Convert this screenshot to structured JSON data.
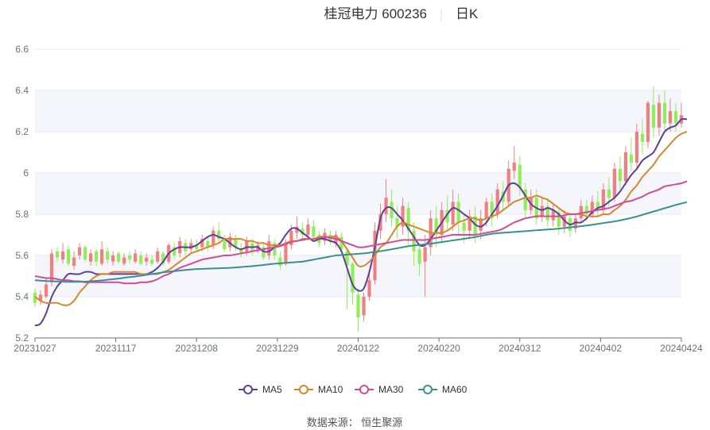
{
  "title": {
    "name": "桂冠电力 600236",
    "period": "日K"
  },
  "source": "数据来源： 恒生聚源",
  "chart_data": {
    "type": "candlestick",
    "ylim": [
      5.2,
      6.6
    ],
    "yticks": [
      "5.2",
      "5.4",
      "5.6",
      "5.8",
      "6",
      "6.2",
      "6.4",
      "6.6"
    ],
    "xticks": [
      "20231027",
      "20231117",
      "20231208",
      "20231229",
      "20240122",
      "20240220",
      "20240312",
      "20240402",
      "20240424"
    ],
    "up_color": "#f08080",
    "down_color": "#91ee58",
    "grid": true,
    "legend_position": "bottom",
    "ohlc": [
      [
        5.42,
        5.37,
        5.44,
        5.35
      ],
      [
        5.38,
        5.41,
        5.43,
        5.36
      ],
      [
        5.4,
        5.46,
        5.49,
        5.39
      ],
      [
        5.47,
        5.61,
        5.63,
        5.45
      ],
      [
        5.62,
        5.59,
        5.64,
        5.57
      ],
      [
        5.58,
        5.62,
        5.66,
        5.56
      ],
      [
        5.63,
        5.56,
        5.65,
        5.55
      ],
      [
        5.55,
        5.59,
        5.62,
        5.53
      ],
      [
        5.6,
        5.64,
        5.66,
        5.58
      ],
      [
        5.64,
        5.58,
        5.65,
        5.57
      ],
      [
        5.57,
        5.61,
        5.63,
        5.55
      ],
      [
        5.62,
        5.57,
        5.63,
        5.55
      ],
      [
        5.56,
        5.63,
        5.67,
        5.55
      ],
      [
        5.62,
        5.58,
        5.64,
        5.56
      ],
      [
        5.57,
        5.6,
        5.62,
        5.55
      ],
      [
        5.61,
        5.57,
        5.62,
        5.56
      ],
      [
        5.56,
        5.59,
        5.61,
        5.55
      ],
      [
        5.6,
        5.58,
        5.62,
        5.56
      ],
      [
        5.57,
        5.61,
        5.63,
        5.56
      ],
      [
        5.6,
        5.56,
        5.62,
        5.55
      ],
      [
        5.57,
        5.59,
        5.61,
        5.55
      ],
      [
        5.58,
        5.56,
        5.6,
        5.55
      ],
      [
        5.57,
        5.62,
        5.64,
        5.56
      ],
      [
        5.61,
        5.56,
        5.62,
        5.55
      ],
      [
        5.57,
        5.65,
        5.66,
        5.56
      ],
      [
        5.64,
        5.6,
        5.66,
        5.58
      ],
      [
        5.61,
        5.67,
        5.69,
        5.59
      ],
      [
        5.66,
        5.62,
        5.68,
        5.6
      ],
      [
        5.63,
        5.66,
        5.68,
        5.61
      ],
      [
        5.65,
        5.63,
        5.68,
        5.62
      ],
      [
        5.64,
        5.68,
        5.7,
        5.62
      ],
      [
        5.67,
        5.64,
        5.69,
        5.62
      ],
      [
        5.65,
        5.72,
        5.74,
        5.63
      ],
      [
        5.72,
        5.68,
        5.76,
        5.66
      ],
      [
        5.67,
        5.63,
        5.7,
        5.62
      ],
      [
        5.64,
        5.69,
        5.71,
        5.62
      ],
      [
        5.68,
        5.64,
        5.7,
        5.62
      ],
      [
        5.63,
        5.61,
        5.66,
        5.59
      ],
      [
        5.62,
        5.67,
        5.69,
        5.6
      ],
      [
        5.66,
        5.62,
        5.68,
        5.6
      ],
      [
        5.63,
        5.65,
        5.67,
        5.61
      ],
      [
        5.64,
        5.59,
        5.66,
        5.58
      ],
      [
        5.6,
        5.67,
        5.7,
        5.58
      ],
      [
        5.66,
        5.6,
        5.68,
        5.58
      ],
      [
        5.59,
        5.55,
        5.62,
        5.53
      ],
      [
        5.56,
        5.66,
        5.68,
        5.55
      ],
      [
        5.65,
        5.72,
        5.75,
        5.63
      ],
      [
        5.71,
        5.74,
        5.79,
        5.68
      ],
      [
        5.73,
        5.7,
        5.76,
        5.68
      ],
      [
        5.7,
        5.75,
        5.78,
        5.68
      ],
      [
        5.74,
        5.69,
        5.77,
        5.67
      ],
      [
        5.7,
        5.66,
        5.72,
        5.64
      ],
      [
        5.67,
        5.71,
        5.73,
        5.65
      ],
      [
        5.7,
        5.67,
        5.72,
        5.65
      ],
      [
        5.66,
        5.7,
        5.72,
        5.64
      ],
      [
        5.69,
        5.63,
        5.71,
        5.61
      ],
      [
        5.62,
        5.55,
        5.64,
        5.34
      ],
      [
        5.56,
        5.42,
        5.57,
        5.36
      ],
      [
        5.41,
        5.3,
        5.44,
        5.23
      ],
      [
        5.31,
        5.4,
        5.42,
        5.28
      ],
      [
        5.4,
        5.48,
        5.52,
        5.38
      ],
      [
        5.48,
        5.72,
        5.76,
        5.46
      ],
      [
        5.72,
        5.8,
        5.85,
        5.68
      ],
      [
        5.8,
        5.88,
        5.97,
        5.76
      ],
      [
        5.86,
        5.78,
        5.92,
        5.74
      ],
      [
        5.78,
        5.74,
        5.84,
        5.68
      ],
      [
        5.74,
        5.84,
        5.88,
        5.7
      ],
      [
        5.83,
        5.72,
        5.86,
        5.64
      ],
      [
        5.72,
        5.62,
        5.76,
        5.55
      ],
      [
        5.63,
        5.56,
        5.66,
        5.5
      ],
      [
        5.57,
        5.64,
        5.7,
        5.4
      ],
      [
        5.64,
        5.78,
        5.82,
        5.6
      ],
      [
        5.78,
        5.7,
        5.84,
        5.64
      ],
      [
        5.7,
        5.82,
        5.86,
        5.66
      ],
      [
        5.82,
        5.76,
        5.89,
        5.72
      ],
      [
        5.75,
        5.86,
        5.92,
        5.72
      ],
      [
        5.86,
        5.76,
        5.9,
        5.7
      ],
      [
        5.76,
        5.72,
        5.8,
        5.66
      ],
      [
        5.72,
        5.79,
        5.82,
        5.68
      ],
      [
        5.79,
        5.7,
        5.84,
        5.66
      ],
      [
        5.72,
        5.78,
        5.82,
        5.68
      ],
      [
        5.78,
        5.86,
        5.88,
        5.74
      ],
      [
        5.86,
        5.78,
        5.9,
        5.74
      ],
      [
        5.8,
        5.92,
        5.95,
        5.78
      ],
      [
        5.91,
        5.86,
        5.96,
        5.82
      ],
      [
        5.86,
        6.02,
        6.06,
        5.84
      ],
      [
        6.01,
        6.05,
        6.13,
        5.97
      ],
      [
        6.04,
        5.93,
        6.08,
        5.89
      ],
      [
        5.92,
        5.82,
        5.95,
        5.78
      ],
      [
        5.82,
        5.88,
        5.92,
        5.8
      ],
      [
        5.88,
        5.78,
        5.92,
        5.75
      ],
      [
        5.79,
        5.84,
        5.88,
        5.76
      ],
      [
        5.84,
        5.77,
        5.88,
        5.74
      ],
      [
        5.77,
        5.82,
        5.85,
        5.74
      ],
      [
        5.81,
        5.74,
        5.83,
        5.7
      ],
      [
        5.74,
        5.79,
        5.82,
        5.71
      ],
      [
        5.78,
        5.72,
        5.81,
        5.69
      ],
      [
        5.73,
        5.78,
        5.8,
        5.71
      ],
      [
        5.78,
        5.84,
        5.87,
        5.76
      ],
      [
        5.84,
        5.8,
        5.87,
        5.77
      ],
      [
        5.8,
        5.86,
        5.89,
        5.78
      ],
      [
        5.86,
        5.82,
        5.91,
        5.79
      ],
      [
        5.82,
        5.92,
        5.95,
        5.8
      ],
      [
        5.92,
        5.88,
        5.98,
        5.84
      ],
      [
        5.88,
        6.02,
        6.05,
        5.86
      ],
      [
        6.02,
        5.96,
        6.08,
        5.92
      ],
      [
        5.96,
        6.1,
        6.13,
        5.94
      ],
      [
        6.09,
        6.05,
        6.17,
        6.01
      ],
      [
        6.05,
        6.2,
        6.24,
        6.02
      ],
      [
        6.19,
        6.15,
        6.26,
        6.09
      ],
      [
        6.15,
        6.34,
        6.35,
        6.12
      ],
      [
        6.33,
        6.22,
        6.42,
        6.17
      ],
      [
        6.22,
        6.34,
        6.38,
        6.18
      ],
      [
        6.34,
        6.24,
        6.4,
        6.2
      ],
      [
        6.24,
        6.3,
        6.36,
        6.2
      ],
      [
        6.3,
        6.24,
        6.34,
        6.2
      ],
      [
        6.24,
        6.28,
        6.34,
        6.22
      ]
    ],
    "series": [
      {
        "name": "MA5",
        "color": "#5b3f99",
        "values": [
          5.26,
          5.27,
          5.32,
          5.4,
          5.45,
          5.48,
          5.51,
          5.51,
          5.51,
          5.52,
          5.52,
          5.51,
          5.51,
          5.51,
          5.51,
          5.51,
          5.51,
          5.51,
          5.51,
          5.51,
          5.51,
          5.52,
          5.54,
          5.57,
          5.61,
          5.63,
          5.64,
          5.64,
          5.64,
          5.65,
          5.67,
          5.69,
          5.7,
          5.69,
          5.68,
          5.66,
          5.64,
          5.63,
          5.64,
          5.64,
          5.64,
          5.62,
          5.62,
          5.64,
          5.66,
          5.7,
          5.73,
          5.73,
          5.71,
          5.69,
          5.67,
          5.68,
          5.68,
          5.67,
          5.66,
          5.62,
          5.54,
          5.46,
          5.43,
          5.44,
          5.52,
          5.64,
          5.78,
          5.83,
          5.83,
          5.8,
          5.77,
          5.73,
          5.69,
          5.65,
          5.65,
          5.68,
          5.72,
          5.76,
          5.8,
          5.83,
          5.82,
          5.8,
          5.78,
          5.75,
          5.74,
          5.76,
          5.8,
          5.84,
          5.89,
          5.94,
          5.95,
          5.93,
          5.89,
          5.85,
          5.83,
          5.82,
          5.83,
          5.82,
          5.8,
          5.77,
          5.75,
          5.76,
          5.76,
          5.78,
          5.81,
          5.83,
          5.84,
          5.86,
          5.88,
          5.91,
          5.95,
          5.99,
          6.02,
          6.06,
          6.08,
          6.1,
          6.15,
          6.2,
          6.22,
          6.23,
          6.26,
          6.26
        ]
      },
      {
        "name": "MA10",
        "color": "#d7862e",
        "values": [
          5.4,
          5.38,
          5.37,
          5.37,
          5.37,
          5.36,
          5.36,
          5.38,
          5.42,
          5.45,
          5.48,
          5.5,
          5.51,
          5.51,
          5.52,
          5.52,
          5.52,
          5.52,
          5.52,
          5.51,
          5.51,
          5.51,
          5.51,
          5.52,
          5.53,
          5.55,
          5.57,
          5.59,
          5.61,
          5.62,
          5.63,
          5.64,
          5.65,
          5.66,
          5.68,
          5.68,
          5.68,
          5.68,
          5.67,
          5.67,
          5.66,
          5.66,
          5.65,
          5.65,
          5.65,
          5.66,
          5.67,
          5.67,
          5.68,
          5.68,
          5.68,
          5.69,
          5.69,
          5.69,
          5.69,
          5.67,
          5.63,
          5.59,
          5.55,
          5.55,
          5.57,
          5.6,
          5.64,
          5.66,
          5.7,
          5.74,
          5.76,
          5.75,
          5.74,
          5.73,
          5.72,
          5.71,
          5.71,
          5.71,
          5.72,
          5.74,
          5.76,
          5.77,
          5.78,
          5.78,
          5.77,
          5.78,
          5.79,
          5.8,
          5.82,
          5.84,
          5.86,
          5.87,
          5.88,
          5.88,
          5.89,
          5.88,
          5.87,
          5.85,
          5.83,
          5.81,
          5.8,
          5.8,
          5.8,
          5.79,
          5.79,
          5.79,
          5.8,
          5.8,
          5.82,
          5.84,
          5.87,
          5.91,
          5.94,
          5.98,
          6.01,
          6.04,
          6.08,
          6.11,
          6.14,
          6.17,
          6.19,
          6.2
        ]
      },
      {
        "name": "MA30",
        "color": "#d34a9b",
        "values": [
          5.5,
          5.495,
          5.49,
          5.49,
          5.485,
          5.48,
          5.48,
          5.475,
          5.475,
          5.47,
          5.47,
          5.47,
          5.47,
          5.47,
          5.47,
          5.47,
          5.465,
          5.465,
          5.465,
          5.47,
          5.47,
          5.475,
          5.485,
          5.5,
          5.51,
          5.525,
          5.54,
          5.55,
          5.56,
          5.57,
          5.58,
          5.585,
          5.59,
          5.595,
          5.6,
          5.6,
          5.605,
          5.61,
          5.615,
          5.62,
          5.625,
          5.63,
          5.635,
          5.64,
          5.645,
          5.655,
          5.665,
          5.67,
          5.675,
          5.68,
          5.68,
          5.685,
          5.69,
          5.685,
          5.68,
          5.67,
          5.66,
          5.65,
          5.64,
          5.64,
          5.645,
          5.65,
          5.655,
          5.66,
          5.665,
          5.67,
          5.675,
          5.675,
          5.675,
          5.675,
          5.675,
          5.68,
          5.685,
          5.69,
          5.695,
          5.7,
          5.7,
          5.7,
          5.7,
          5.7,
          5.705,
          5.71,
          5.715,
          5.72,
          5.73,
          5.745,
          5.76,
          5.77,
          5.78,
          5.785,
          5.79,
          5.79,
          5.79,
          5.79,
          5.79,
          5.795,
          5.8,
          5.8,
          5.805,
          5.81,
          5.815,
          5.82,
          5.825,
          5.83,
          5.84,
          5.85,
          5.86,
          5.865,
          5.875,
          5.885,
          5.9,
          5.91,
          5.92,
          5.935,
          5.94,
          5.945,
          5.95,
          5.96
        ]
      },
      {
        "name": "MA60",
        "color": "#3a8f8f",
        "values": [
          5.48,
          5.478,
          5.476,
          5.475,
          5.474,
          5.473,
          5.472,
          5.472,
          5.472,
          5.473,
          5.475,
          5.477,
          5.479,
          5.482,
          5.485,
          5.488,
          5.492,
          5.495,
          5.498,
          5.502,
          5.506,
          5.51,
          5.514,
          5.518,
          5.521,
          5.524,
          5.527,
          5.53,
          5.532,
          5.534,
          5.535,
          5.536,
          5.537,
          5.538,
          5.539,
          5.54,
          5.542,
          5.544,
          5.546,
          5.548,
          5.551,
          5.554,
          5.557,
          5.56,
          5.562,
          5.564,
          5.566,
          5.568,
          5.57,
          5.575,
          5.58,
          5.585,
          5.59,
          5.595,
          5.6,
          5.602,
          5.604,
          5.606,
          5.608,
          5.61,
          5.613,
          5.617,
          5.621,
          5.625,
          5.63,
          5.635,
          5.64,
          5.645,
          5.648,
          5.651,
          5.654,
          5.657,
          5.661,
          5.665,
          5.669,
          5.673,
          5.677,
          5.681,
          5.685,
          5.689,
          5.695,
          5.7,
          5.705,
          5.708,
          5.71,
          5.712,
          5.714,
          5.716,
          5.718,
          5.72,
          5.722,
          5.724,
          5.726,
          5.728,
          5.73,
          5.733,
          5.736,
          5.739,
          5.742,
          5.745,
          5.749,
          5.753,
          5.757,
          5.761,
          5.765,
          5.77,
          5.776,
          5.782,
          5.789,
          5.797,
          5.805,
          5.813,
          5.821,
          5.829,
          5.837,
          5.845,
          5.852,
          5.858
        ]
      }
    ]
  }
}
